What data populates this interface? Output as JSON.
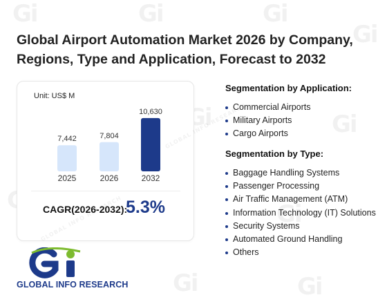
{
  "title": "Global Airport Automation Market 2026 by Company, Regions, Type and Application, Forecast to 2032",
  "chart_data": {
    "type": "bar",
    "unit_label": "Unit: US$ M",
    "categories": [
      "2025",
      "2026",
      "2032"
    ],
    "values": [
      7442,
      7804,
      10630
    ],
    "value_labels": [
      "7,442",
      "7,804",
      "10,630"
    ],
    "ylim": [
      0,
      12000
    ],
    "colors": [
      "#d6e6fb",
      "#d6e6fb",
      "#1d3a8a"
    ],
    "grid": false,
    "legend": "none"
  },
  "cagr": {
    "label": "CAGR(2026-2032):",
    "value": "5.3%"
  },
  "segmentation": {
    "application": {
      "heading": "Segmentation by Application:",
      "items": [
        "Commercial Airports",
        "Military Airports",
        "Cargo Airports"
      ]
    },
    "type": {
      "heading": "Segmentation by Type:",
      "items": [
        "Baggage Handling Systems",
        "Passenger Processing",
        "Air Traffic Management (ATM)",
        "Information Technology (IT) Solutions",
        "Security Systems",
        "Automated Ground Handling",
        "Others"
      ]
    }
  },
  "logo": {
    "text": "GLOBAL INFO RESEARCH",
    "monogram": "Gi",
    "primary_color": "#1d3a8a",
    "accent_color": "#7dbb2f"
  }
}
